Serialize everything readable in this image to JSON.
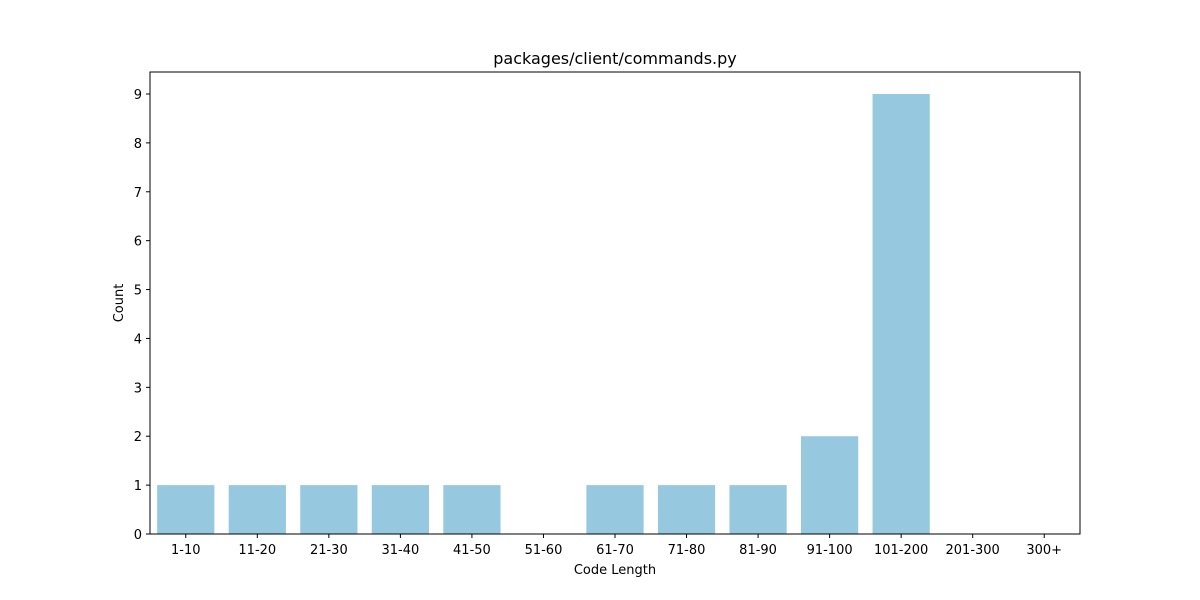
{
  "chart_data": {
    "type": "bar",
    "title": "packages/client/commands.py",
    "xlabel": "Code Length",
    "ylabel": "Count",
    "categories": [
      "1-10",
      "11-20",
      "21-30",
      "31-40",
      "41-50",
      "51-60",
      "61-70",
      "71-80",
      "81-90",
      "91-100",
      "101-200",
      "201-300",
      "300+"
    ],
    "values": [
      1,
      1,
      1,
      1,
      1,
      0,
      1,
      1,
      1,
      2,
      9,
      0,
      0
    ],
    "yticks": [
      0,
      1,
      2,
      3,
      4,
      5,
      6,
      7,
      8,
      9
    ],
    "ylim": [
      0,
      9.45
    ],
    "bar_color": "#96C9DF",
    "grid": false,
    "legend": "none"
  }
}
